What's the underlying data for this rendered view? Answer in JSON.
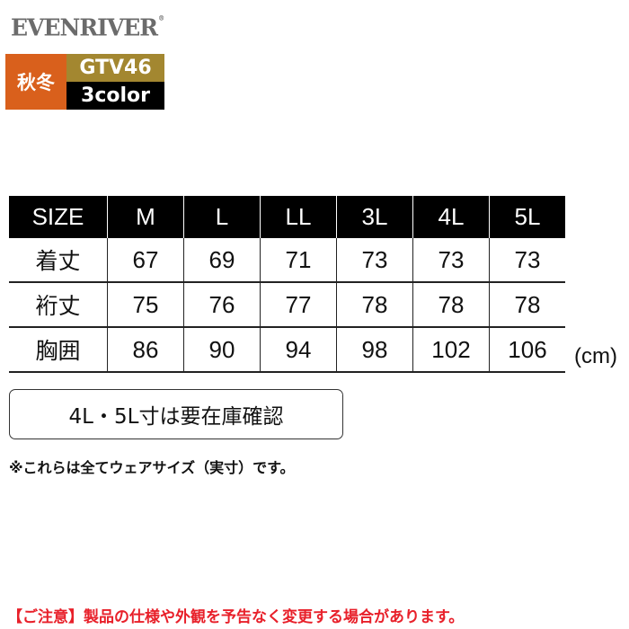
{
  "brand": {
    "name": "EVENRIVER",
    "mark": "®"
  },
  "badge": {
    "season": "秋冬",
    "product_code": "GTV46",
    "colors": "3color",
    "season_color": "#d9601c",
    "code_color": "#a38730"
  },
  "size_table": {
    "headers": [
      "SIZE",
      "M",
      "L",
      "LL",
      "3L",
      "4L",
      "5L"
    ],
    "rows": [
      {
        "label": "着丈",
        "values": [
          "67",
          "69",
          "71",
          "73",
          "73",
          "73"
        ]
      },
      {
        "label": "裄丈",
        "values": [
          "75",
          "76",
          "77",
          "78",
          "78",
          "78"
        ]
      },
      {
        "label": "胸囲",
        "values": [
          "86",
          "90",
          "94",
          "98",
          "102",
          "106"
        ]
      }
    ],
    "unit": "(cm)"
  },
  "stock_note": "4L・5L寸は要在庫確認",
  "remark": "※これらは全てウェアサイズ（実寸）です。",
  "caution": "【ご注意】製品の仕様や外観を予告なく変更する場合があります。"
}
